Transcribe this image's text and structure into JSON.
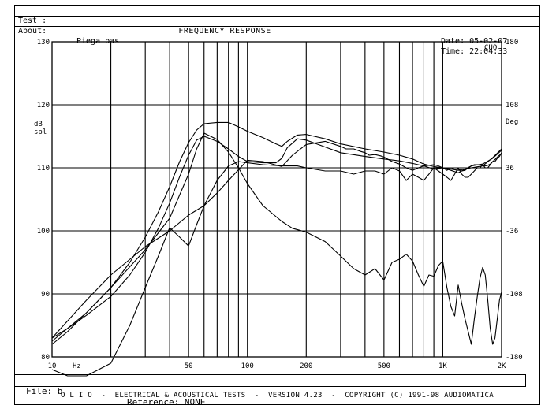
{
  "header": {
    "test_label": "Test :",
    "title": "FREQUENCY RESPONSE",
    "date": "Date: 05-02-07",
    "about_label": "About:",
    "about_value": "Piega bas",
    "time": "Time: 22:04:33"
  },
  "footer": {
    "file": "File: b",
    "reference": "Reference: NONE",
    "credits": "O L I O  -  ELECTRICAL & ACOUSTICAL TESTS  -  VERSION 4.23  -  COPYRIGHT (C) 1991-98 AUDIOMATICA"
  },
  "chart_data": {
    "type": "line",
    "title": "FREQUENCY RESPONSE",
    "xscale": "log",
    "xlim": [
      10,
      2000
    ],
    "ylim": [
      80,
      130
    ],
    "y2lim": [
      -180,
      180
    ],
    "ylabel": "dB spl",
    "y2label": "Deg",
    "x_unit": "Hz",
    "corner_label": "CUO",
    "grid": true,
    "x_ticks": [
      {
        "value": 10,
        "label": "10"
      },
      {
        "value": 50,
        "label": "50"
      },
      {
        "value": 100,
        "label": "100"
      },
      {
        "value": 200,
        "label": "200"
      },
      {
        "value": 500,
        "label": "500"
      },
      {
        "value": 1000,
        "label": "1K"
      },
      {
        "value": 2000,
        "label": "2K"
      }
    ],
    "y_ticks": [
      {
        "value": 80,
        "label": "80"
      },
      {
        "value": 90,
        "label": "90"
      },
      {
        "value": 100,
        "label": "100"
      },
      {
        "value": 110,
        "label": "110"
      },
      {
        "value": 120,
        "label": "120"
      },
      {
        "value": 130,
        "label": "130"
      }
    ],
    "y2_ticks": [
      {
        "value": -180,
        "label": "-180"
      },
      {
        "value": -108,
        "label": "-108"
      },
      {
        "value": -36,
        "label": "-36"
      },
      {
        "value": 36,
        "label": "36"
      },
      {
        "value": 108,
        "label": "108"
      },
      {
        "value": 180,
        "label": "180"
      }
    ],
    "series": [
      {
        "x": [
          10,
          12,
          15,
          20,
          25,
          30,
          35,
          40,
          45,
          50,
          55,
          60,
          70,
          80,
          90,
          100,
          120,
          140,
          150,
          160,
          180,
          200,
          250,
          300,
          400,
          500,
          600,
          700,
          800,
          900,
          1000,
          1100,
          1200,
          1400,
          1600,
          1800,
          2000
        ],
        "y": [
          82,
          84,
          87,
          91,
          95,
          99,
          103,
          107,
          111,
          114,
          116,
          117,
          117.2,
          117.2,
          116.5,
          115.8,
          114.8,
          113.8,
          113.4,
          114.2,
          115.2,
          115.3,
          114.6,
          113.8,
          113,
          112.5,
          112,
          111.4,
          110.6,
          110.2,
          110,
          109.8,
          109.6,
          110,
          110.3,
          111.6,
          113
        ]
      },
      {
        "x": [
          10,
          12,
          15,
          20,
          25,
          30,
          35,
          40,
          45,
          50,
          55,
          60,
          70,
          80,
          90,
          100,
          120,
          140,
          150,
          160,
          180,
          200,
          250,
          300,
          400,
          500,
          600,
          700,
          800,
          900,
          1000,
          1100,
          1200,
          1400,
          1600,
          1800,
          2000
        ],
        "y": [
          83,
          84.5,
          86.6,
          89.6,
          93,
          96.6,
          100.4,
          104.4,
          108.6,
          112,
          114.4,
          115,
          114.2,
          113,
          111.8,
          111,
          110.8,
          110.8,
          111.5,
          113.2,
          114.6,
          114.4,
          113.3,
          112.4,
          111.8,
          111.4,
          111.1,
          110.7,
          110.3,
          109.8,
          110,
          109.6,
          109.2,
          110.3,
          110.6,
          111.5,
          112.8
        ]
      },
      {
        "x": [
          10,
          12,
          15,
          20,
          25,
          30,
          35,
          40,
          45,
          50,
          55,
          60,
          70,
          80,
          90,
          100,
          120,
          150,
          180,
          200,
          250,
          300,
          350,
          400,
          450,
          500,
          550,
          600,
          650,
          700,
          750,
          800,
          850,
          900,
          950,
          1000,
          1050,
          1100,
          1150,
          1200,
          1250,
          1300,
          1350,
          1400,
          1450,
          1500,
          1550,
          1600,
          1650,
          1700,
          1750,
          1800,
          1850,
          1900,
          1950,
          2000
        ],
        "y": [
          78,
          77,
          77,
          79,
          85,
          91,
          96,
          100.5,
          99,
          97.6,
          101,
          104,
          108,
          110.3,
          111,
          110.8,
          110.5,
          110.3,
          110.3,
          110,
          109.5,
          109.5,
          109,
          109.5,
          109.5,
          109,
          110,
          109.5,
          108,
          109,
          108.5,
          108,
          109,
          110,
          109.5,
          109,
          108.5,
          108,
          109,
          110,
          109,
          108.5,
          108.5,
          109,
          109.5,
          110,
          110,
          110.5,
          110,
          110,
          110.5,
          111,
          111,
          111.5,
          111.8,
          112.4
        ]
      },
      {
        "x": [
          10,
          15,
          20,
          30,
          40,
          50,
          60,
          70,
          80,
          100,
          120,
          150,
          170,
          200,
          250,
          300,
          320,
          350,
          380,
          400,
          420,
          450,
          480,
          500,
          550,
          600,
          650,
          700,
          750,
          800,
          850,
          900,
          950,
          1000,
          1050,
          1100,
          1150,
          1200,
          1250,
          1300,
          1350,
          1400,
          1450,
          1500,
          1550,
          1600,
          1650,
          1700,
          1750,
          1800,
          1850,
          1900,
          1950,
          2000
        ],
        "y": [
          83,
          89,
          93,
          97.5,
          100,
          102.5,
          104,
          106,
          108,
          111.2,
          111,
          110.2,
          112,
          113.7,
          114.2,
          113.4,
          113,
          113,
          112.6,
          112.4,
          112,
          112.1,
          111.9,
          111.7,
          111,
          110.6,
          110,
          109.6,
          110,
          110.3,
          110.4,
          110.5,
          110.3,
          110,
          109.6,
          110,
          109.8,
          109.8,
          109.5,
          109.6,
          110,
          110.3,
          110.5,
          110.5,
          110.5,
          110.4,
          110.3,
          110.4,
          110.6,
          111,
          111.3,
          111.7,
          112,
          112.3
        ]
      },
      {
        "x": [
          10,
          15,
          20,
          30,
          40,
          50,
          55,
          60,
          70,
          80,
          90,
          100,
          120,
          150,
          170,
          200,
          250,
          300,
          350,
          400,
          450,
          500,
          550,
          600,
          650,
          700,
          750,
          800,
          850,
          900,
          950,
          1000,
          1050,
          1100,
          1150,
          1200,
          1250,
          1300,
          1350,
          1400,
          1450,
          1500,
          1550,
          1600,
          1650,
          1700,
          1750,
          1800,
          1850,
          1900,
          1950,
          2000
        ],
        "y": [
          82.5,
          87,
          91,
          97,
          102,
          109,
          113,
          115.5,
          114.5,
          112.5,
          110,
          107.5,
          104,
          101.5,
          100.4,
          99.8,
          98.3,
          96,
          94,
          93,
          94,
          92.2,
          95,
          95.5,
          96.3,
          95.2,
          93,
          91.2,
          93,
          92.8,
          94.5,
          95.2,
          91,
          88,
          86.5,
          91.4,
          88.5,
          86,
          84,
          82,
          86,
          89.5,
          92.5,
          94.2,
          93,
          89,
          84.5,
          82,
          83,
          86,
          89,
          90.3
        ]
      }
    ]
  }
}
